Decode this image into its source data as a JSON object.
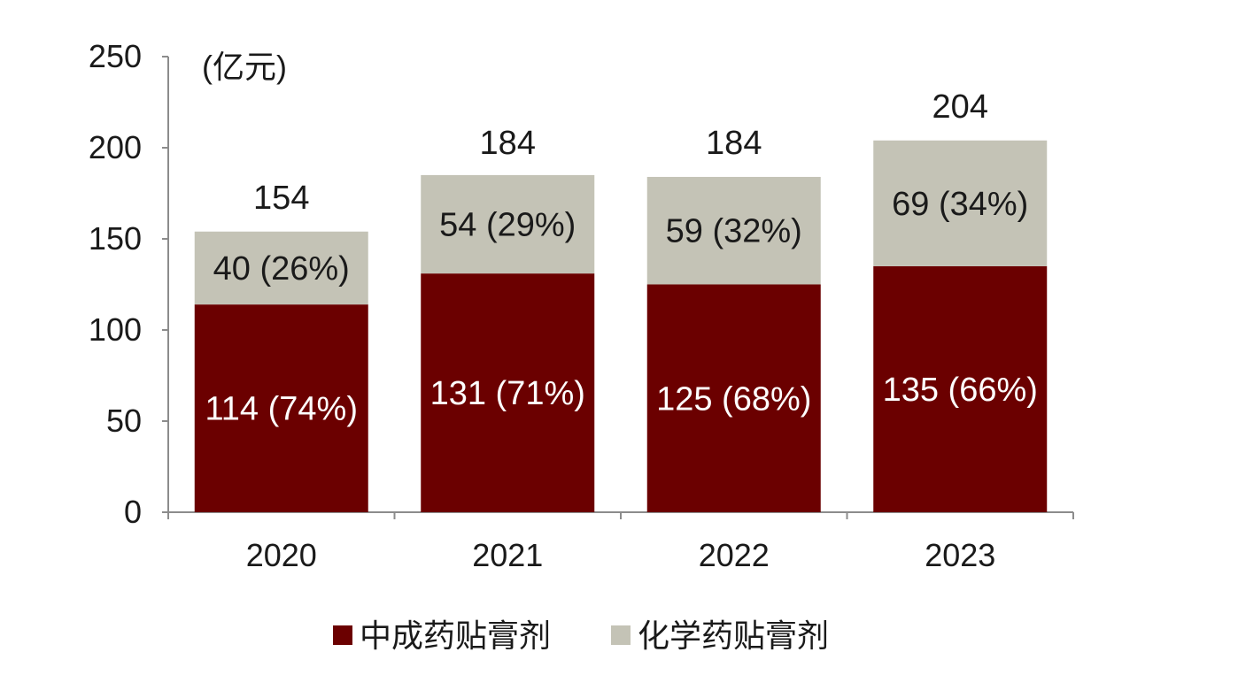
{
  "chart_data": {
    "type": "bar",
    "stacked": true,
    "unit": "(亿元)",
    "categories": [
      "2020",
      "2021",
      "2022",
      "2023"
    ],
    "series": [
      {
        "name": "中成药贴膏剂",
        "color": "#6b0000",
        "values": [
          114,
          131,
          125,
          135
        ],
        "labels": [
          "114 (74%)",
          "131 (71%)",
          "125 (68%)",
          "135 (66%)"
        ]
      },
      {
        "name": "化学药贴膏剂",
        "color": "#c4c3b6",
        "values": [
          40,
          54,
          59,
          69
        ],
        "labels": [
          "40 (26%)",
          "54 (29%)",
          "59 (32%)",
          "69 (34%)"
        ]
      }
    ],
    "totals": [
      154,
      184,
      184,
      204
    ],
    "ylim": [
      0,
      250
    ],
    "yticks": [
      0,
      50,
      100,
      150,
      200,
      250
    ],
    "legend_position": "bottom",
    "grid": false
  }
}
